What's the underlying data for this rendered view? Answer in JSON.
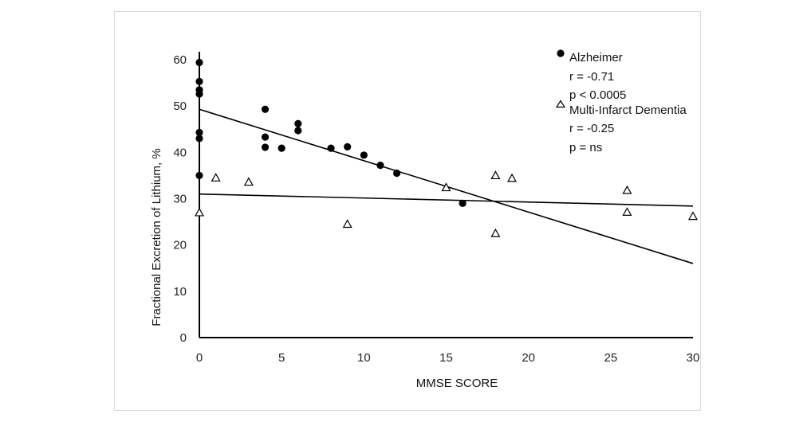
{
  "chart_data": {
    "type": "scatter",
    "xlabel": "MMSE SCORE",
    "ylabel": "Fractional Excretion of Lithium, %",
    "xlim": [
      0,
      30
    ],
    "ylim": [
      0,
      60
    ],
    "xticks": [
      0,
      5,
      10,
      15,
      20,
      25,
      30
    ],
    "yticks": [
      0,
      10,
      20,
      30,
      40,
      50,
      60
    ],
    "grid": false,
    "legend_position": "top-right",
    "series": [
      {
        "name": "Alzheimer",
        "marker": "filled-circle",
        "stats": [
          "r = -0.71",
          "p < 0.0005"
        ],
        "points": [
          {
            "x": 0,
            "y": 59.4
          },
          {
            "x": 0,
            "y": 55.3
          },
          {
            "x": 0,
            "y": 53.5
          },
          {
            "x": 0,
            "y": 52.6
          },
          {
            "x": 0,
            "y": 44.3
          },
          {
            "x": 0,
            "y": 43.0
          },
          {
            "x": 0,
            "y": 35.0
          },
          {
            "x": 4,
            "y": 49.3
          },
          {
            "x": 4,
            "y": 43.3
          },
          {
            "x": 4,
            "y": 41.1
          },
          {
            "x": 5,
            "y": 40.9
          },
          {
            "x": 6,
            "y": 46.2
          },
          {
            "x": 6,
            "y": 44.7
          },
          {
            "x": 8,
            "y": 40.9
          },
          {
            "x": 9,
            "y": 41.2
          },
          {
            "x": 10,
            "y": 39.4
          },
          {
            "x": 11,
            "y": 37.2
          },
          {
            "x": 12,
            "y": 35.5
          },
          {
            "x": 16,
            "y": 29.0
          }
        ],
        "fit": {
          "x": [
            0,
            30
          ],
          "y": [
            49.3,
            16.0
          ]
        }
      },
      {
        "name": "Multi-Infarct Dementia",
        "marker": "open-triangle",
        "stats": [
          "r = -0.25",
          "p = ns"
        ],
        "points": [
          {
            "x": 0,
            "y": 27.0
          },
          {
            "x": 1,
            "y": 34.5
          },
          {
            "x": 3,
            "y": 33.6
          },
          {
            "x": 9,
            "y": 24.5
          },
          {
            "x": 15,
            "y": 32.4
          },
          {
            "x": 18,
            "y": 35.0
          },
          {
            "x": 18,
            "y": 22.5
          },
          {
            "x": 19,
            "y": 34.4
          },
          {
            "x": 26,
            "y": 31.8
          },
          {
            "x": 26,
            "y": 27.1
          },
          {
            "x": 30,
            "y": 26.2
          }
        ],
        "fit": {
          "x": [
            0,
            30
          ],
          "y": [
            31.0,
            28.4
          ]
        }
      }
    ],
    "colors": {
      "marker": "#000000",
      "axis": "#000000",
      "text": "#222222"
    }
  }
}
